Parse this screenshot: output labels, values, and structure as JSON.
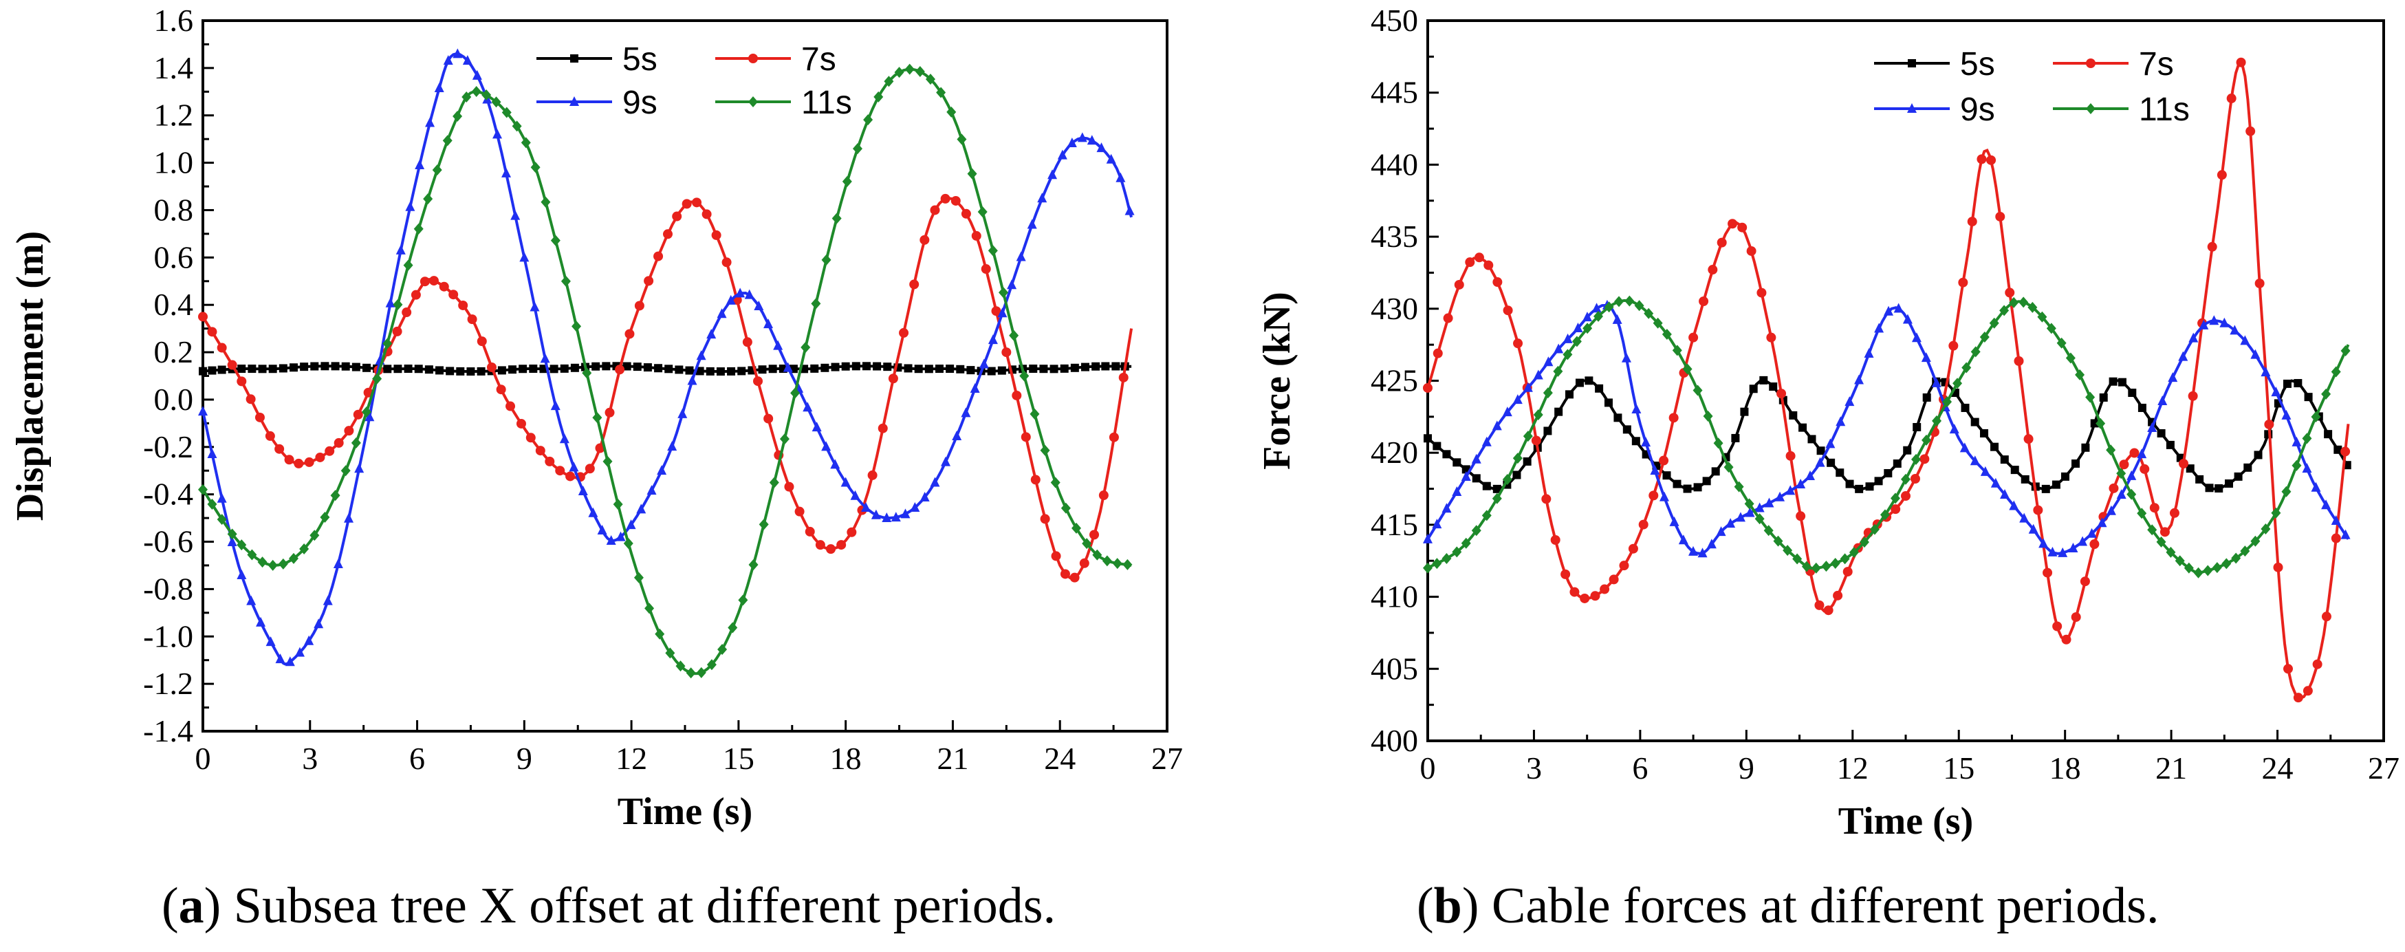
{
  "chart_data": [
    {
      "type": "line",
      "panel": "a",
      "caption_letter": "a",
      "caption_text": ") Subsea tree X offset at different periods.",
      "xlabel": "Time (s)",
      "ylabel": "Displacement (m)",
      "xlim": [
        0,
        27
      ],
      "ylim": [
        -1.4,
        1.6
      ],
      "xticks": [
        0,
        3,
        6,
        9,
        12,
        15,
        18,
        21,
        24,
        27
      ],
      "yticks": [
        -1.4,
        -1.2,
        -1.0,
        -0.8,
        -0.6,
        -0.4,
        -0.2,
        0.0,
        0.2,
        0.4,
        0.6,
        0.8,
        1.0,
        1.2,
        1.4,
        1.6
      ],
      "ytick_labels": [
        "-1.4",
        "-1.2",
        "-1.0",
        "-0.8",
        "-0.6",
        "-0.4",
        "-0.2",
        "0.0",
        "0.2",
        "0.4",
        "0.6",
        "0.8",
        "1.0",
        "1.2",
        "1.4",
        "1.6"
      ],
      "legend_position": "top-right",
      "series": [
        {
          "name": "5s",
          "color": "#000000",
          "marker": "square",
          "x": [
            0,
            1,
            2,
            3,
            4,
            5,
            6,
            7,
            8,
            9,
            10,
            11,
            12,
            13,
            14,
            15,
            16,
            17,
            18,
            19,
            20,
            21,
            22,
            23,
            24,
            25,
            26
          ],
          "y": [
            0.12,
            0.13,
            0.13,
            0.14,
            0.14,
            0.13,
            0.13,
            0.12,
            0.12,
            0.13,
            0.13,
            0.14,
            0.14,
            0.13,
            0.12,
            0.12,
            0.13,
            0.13,
            0.14,
            0.14,
            0.13,
            0.13,
            0.12,
            0.13,
            0.13,
            0.14,
            0.14
          ]
        },
        {
          "name": "7s",
          "color": "#e8221c",
          "marker": "circle",
          "x": [
            0,
            1,
            2,
            2.8,
            4,
            5,
            6,
            6.5,
            7.5,
            8.5,
            10,
            11,
            12,
            13.5,
            14.5,
            15.5,
            16.5,
            17.5,
            18.5,
            19.5,
            20.5,
            21.5,
            22.5,
            24,
            25,
            26
          ],
          "y": [
            0.35,
            0.1,
            -0.18,
            -0.27,
            -0.15,
            0.15,
            0.45,
            0.5,
            0.35,
            0.0,
            -0.3,
            -0.25,
            0.3,
            0.82,
            0.65,
            0.1,
            -0.4,
            -0.63,
            -0.45,
            0.2,
            0.8,
            0.75,
            0.2,
            -0.7,
            -0.55,
            0.3
          ]
        },
        {
          "name": "9s",
          "color": "#1f2ff0",
          "marker": "triangle",
          "x": [
            0,
            1,
            2,
            2.5,
            3.5,
            4.5,
            5.5,
            6.5,
            7.1,
            8,
            9,
            10,
            11,
            11.7,
            13,
            14,
            15.2,
            16.5,
            18,
            19.2,
            20.5,
            22,
            23.5,
            24.5,
            25.5,
            26
          ],
          "y": [
            -0.05,
            -0.7,
            -1.05,
            -1.1,
            -0.85,
            -0.2,
            0.6,
            1.25,
            1.46,
            1.25,
            0.6,
            -0.1,
            -0.5,
            -0.58,
            -0.25,
            0.2,
            0.45,
            0.1,
            -0.35,
            -0.5,
            -0.35,
            0.2,
            0.85,
            1.1,
            1.0,
            0.77
          ]
        },
        {
          "name": "11s",
          "color": "#1e8a2a",
          "marker": "diamond",
          "x": [
            0,
            1,
            2,
            3,
            4,
            5,
            6,
            7,
            7.7,
            9,
            10,
            11,
            12,
            13,
            14,
            15,
            16,
            17,
            18,
            19,
            20,
            21,
            22,
            23,
            24,
            25,
            26
          ],
          "y": [
            -0.38,
            -0.6,
            -0.7,
            -0.6,
            -0.3,
            0.15,
            0.7,
            1.15,
            1.3,
            1.1,
            0.6,
            -0.05,
            -0.65,
            -1.05,
            -1.15,
            -0.9,
            -0.35,
            0.3,
            0.9,
            1.3,
            1.39,
            1.2,
            0.7,
            0.1,
            -0.4,
            -0.65,
            -0.7
          ]
        }
      ]
    },
    {
      "type": "line",
      "panel": "b",
      "caption_letter": "b",
      "caption_text": ") Cable forces at different periods.",
      "xlabel": "Time (s)",
      "ylabel": "Force (kN)",
      "xlim": [
        0,
        27
      ],
      "ylim": [
        400,
        450
      ],
      "xticks": [
        0,
        3,
        6,
        9,
        12,
        15,
        18,
        21,
        24,
        27
      ],
      "yticks": [
        400,
        405,
        410,
        415,
        420,
        425,
        430,
        435,
        440,
        445,
        450
      ],
      "ytick_labels": [
        "400",
        "405",
        "410",
        "415",
        "420",
        "425",
        "430",
        "435",
        "440",
        "445",
        "450"
      ],
      "legend_position": "top-right",
      "series": [
        {
          "name": "5s",
          "color": "#000000",
          "marker": "square",
          "x": [
            0,
            1,
            2,
            3,
            4.4,
            5.5,
            6.5,
            7.5,
            8.5,
            9.4,
            10.5,
            11.5,
            12.3,
            13.5,
            14.4,
            15.5,
            16.5,
            17.5,
            18.5,
            19.4,
            20.5,
            21.5,
            22.3,
            23.5,
            24.4,
            25.5,
            26
          ],
          "y": [
            421,
            419,
            417.5,
            420,
            425,
            422,
            419,
            417.5,
            420,
            425,
            422,
            419,
            417.5,
            420,
            425,
            422,
            419,
            417.5,
            420,
            425,
            422,
            419,
            417.5,
            420,
            425,
            421,
            419
          ]
        },
        {
          "name": "7s",
          "color": "#e8221c",
          "marker": "circle",
          "x": [
            0,
            1.3,
            2.5,
            3.5,
            4.3,
            5.5,
            6.5,
            7.5,
            8.7,
            9.7,
            10.5,
            11.2,
            12.3,
            13.5,
            14.5,
            15.2,
            15.8,
            16.5,
            17.3,
            18,
            19,
            20,
            21,
            22.2,
            23,
            23.6,
            24.3,
            25.2,
            26
          ],
          "y": [
            424.5,
            433.5,
            428,
            415,
            410,
            412,
            418,
            428,
            436,
            428,
            416,
            409,
            414,
            417,
            423,
            433,
            441,
            430,
            415,
            407,
            415,
            420,
            415,
            435,
            447,
            428,
            405,
            406,
            422
          ]
        },
        {
          "name": "9s",
          "color": "#1f2ff0",
          "marker": "triangle",
          "x": [
            0,
            1,
            2,
            3,
            4,
            5.2,
            6,
            7,
            7.7,
            8.5,
            10,
            11,
            12,
            13.1,
            14,
            15,
            16,
            17,
            17.8,
            19,
            20,
            21,
            22,
            23,
            24,
            25,
            26
          ],
          "y": [
            414,
            418,
            422,
            425,
            428,
            430,
            422,
            415,
            413,
            415,
            417,
            419,
            424,
            430,
            427,
            421,
            418,
            415,
            413,
            415,
            419,
            425,
            429,
            428,
            424,
            418,
            414
          ]
        },
        {
          "name": "11s",
          "color": "#1e8a2a",
          "marker": "diamond",
          "x": [
            0,
            1,
            2,
            3,
            4,
            5.4,
            6.5,
            7.5,
            8.5,
            9.5,
            10.5,
            11,
            12,
            13,
            14,
            15,
            16,
            16.7,
            17.5,
            18.5,
            19.5,
            20.5,
            21.5,
            22,
            23,
            24,
            25,
            26
          ],
          "y": [
            412,
            413.5,
            417,
            422,
            427,
            430.5,
            429,
            425,
            419,
            415,
            412.5,
            412,
            413,
            416,
            420.5,
            425,
            429,
            430.5,
            429,
            425,
            419,
            414.5,
            412,
            411.8,
            413,
            416,
            422,
            427.5
          ]
        }
      ]
    }
  ]
}
